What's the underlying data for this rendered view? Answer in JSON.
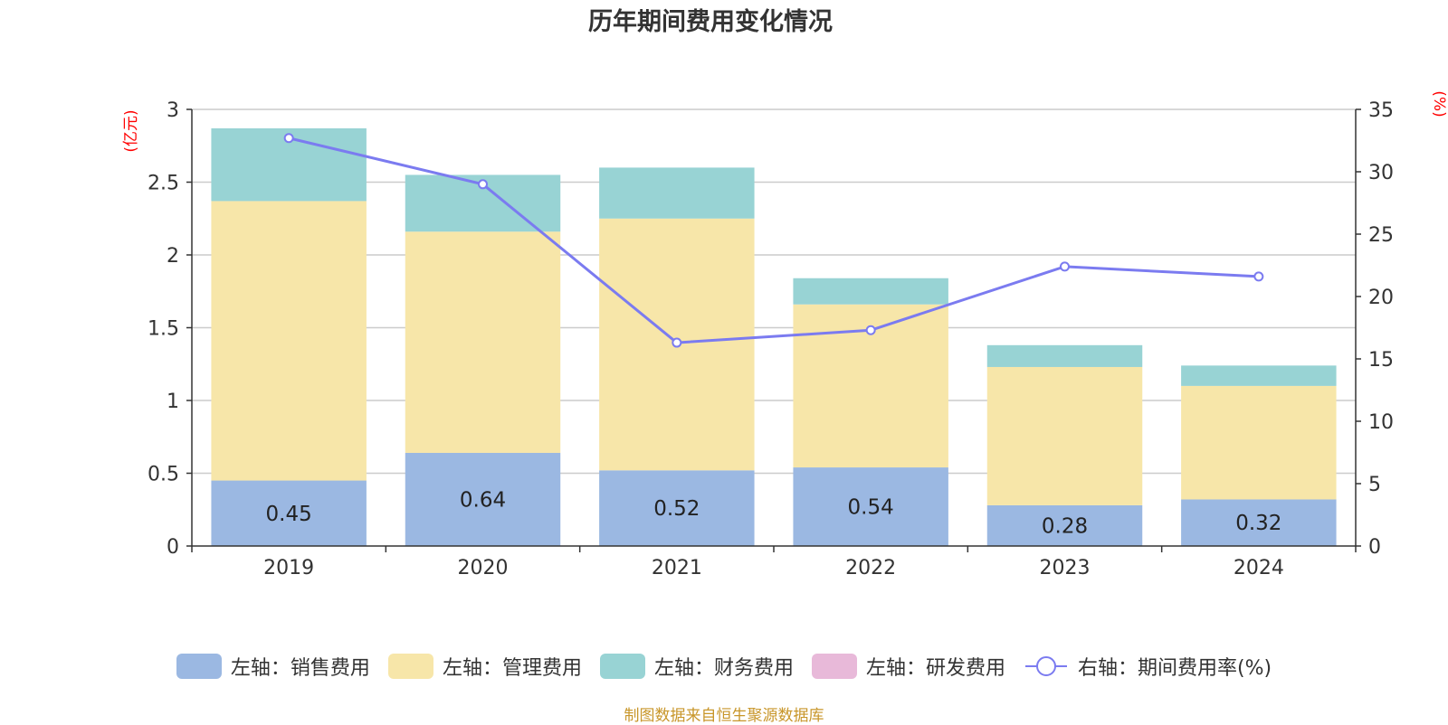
{
  "chart_data": {
    "type": "bar",
    "title": "历年期间费用变化情况",
    "categories": [
      "2019",
      "2020",
      "2021",
      "2022",
      "2023",
      "2024"
    ],
    "left_axis": {
      "label": "(亿元)",
      "min": 0,
      "max": 3,
      "ticks": [
        "0",
        "0.5",
        "1",
        "1.5",
        "2",
        "2.5",
        "3"
      ]
    },
    "right_axis": {
      "label": "(%)",
      "min": 0,
      "max": 35,
      "ticks": [
        "0",
        "5",
        "10",
        "15",
        "20",
        "25",
        "30",
        "35"
      ]
    },
    "stacked": true,
    "grid": true,
    "legend_position": "bottom",
    "series": [
      {
        "name": "左轴：销售费用",
        "axis": "left",
        "color": "#9bb8e2",
        "values": [
          0.45,
          0.64,
          0.52,
          0.54,
          0.28,
          0.32
        ],
        "labels": [
          "0.45",
          "0.64",
          "0.52",
          "0.54",
          "0.28",
          "0.32"
        ]
      },
      {
        "name": "左轴：管理费用",
        "axis": "left",
        "color": "#f7e6a9",
        "values": [
          1.92,
          1.52,
          1.73,
          1.12,
          0.95,
          0.78
        ]
      },
      {
        "name": "左轴：财务费用",
        "axis": "left",
        "color": "#98d3d4",
        "values": [
          0.5,
          0.39,
          0.35,
          0.18,
          0.15,
          0.14
        ]
      },
      {
        "name": "左轴：研发费用",
        "axis": "left",
        "color": "#e8b9d9",
        "values": [
          0,
          0,
          0,
          0,
          0,
          0
        ]
      },
      {
        "name": "右轴：期间费用率(%)",
        "axis": "right",
        "type": "line",
        "color": "#7b7bf0",
        "values": [
          32.7,
          29.0,
          16.3,
          17.3,
          22.4,
          21.6
        ]
      }
    ]
  },
  "source_note": "制图数据来自恒生聚源数据库"
}
